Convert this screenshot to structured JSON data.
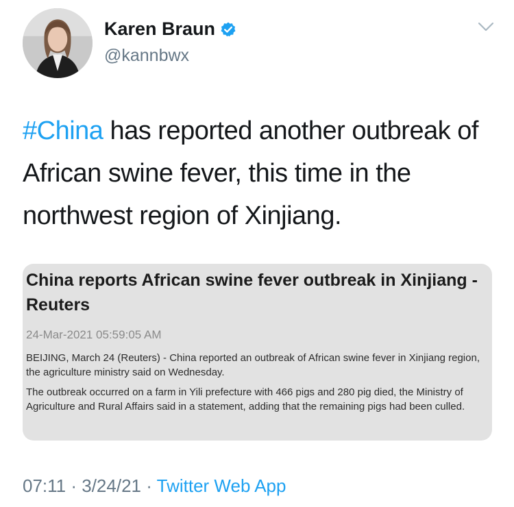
{
  "author": {
    "name": "Karen Braun",
    "handle": "@kannbwx",
    "verified_icon": "verified-badge-icon",
    "avatar_icon": "profile-photo"
  },
  "menu": {
    "icon": "chevron-down-icon"
  },
  "tweet": {
    "hashtag": "#China",
    "text": " has reported another outbreak of African swine fever, this time in the northwest region of Xinjiang."
  },
  "card": {
    "title": "China reports African swine fever outbreak in Xinjiang - Reuters",
    "date": "24-Mar-2021 05:59:05 AM",
    "paragraph1": "BEIJING, March 24 (Reuters) - China reported an outbreak of African swine fever in Xinjiang region, the agriculture ministry said on Wednesday.",
    "paragraph2": "The outbreak occurred on a farm in Yili prefecture with 466 pigs and 280 pig died, the Ministry of Agriculture and Rural Affairs said in a statement, adding that the remaining pigs had been culled."
  },
  "meta": {
    "time": "07:11",
    "separator": " · ",
    "date": "3/24/21",
    "source": "Twitter Web App"
  },
  "colors": {
    "accent": "#1da1f2",
    "text": "#14171a",
    "muted": "#657786"
  }
}
